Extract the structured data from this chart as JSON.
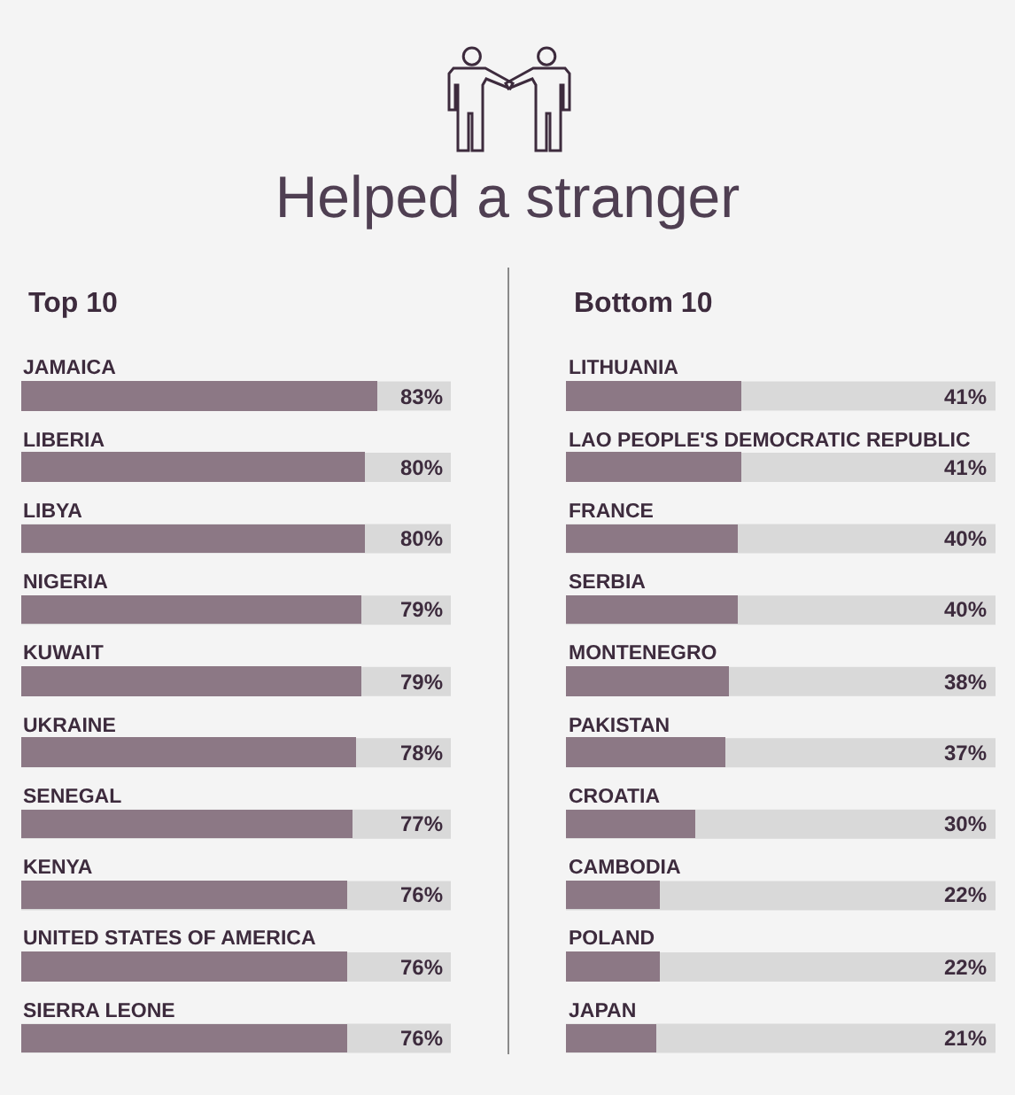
{
  "chart_data": [
    {
      "type": "bar",
      "orientation": "horizontal",
      "title": "Helped a stranger",
      "subtitle": "Top 10",
      "categories": [
        "JAMAICA",
        "LIBERIA",
        "LIBYA",
        "NIGERIA",
        "KUWAIT",
        "UKRAINE",
        "SENEGAL",
        "KENYA",
        "UNITED STATES OF AMERICA",
        "SIERRA LEONE"
      ],
      "values": [
        83,
        80,
        80,
        79,
        79,
        78,
        77,
        76,
        76,
        76
      ],
      "value_labels": [
        "83%",
        "80%",
        "80%",
        "79%",
        "79%",
        "78%",
        "77%",
        "76%",
        "76%",
        "76%"
      ],
      "color": "#8c7885",
      "xlim": [
        0,
        100
      ],
      "tick_labels": "y"
    },
    {
      "type": "bar",
      "orientation": "horizontal",
      "subtitle": "Bottom 10",
      "categories": [
        "LITHUANIA",
        "LAO PEOPLE'S DEMOCRATIC REPUBLIC",
        "FRANCE",
        "SERBIA",
        "MONTENEGRO",
        "PAKISTAN",
        "CROATIA",
        "CAMBODIA",
        "POLAND",
        "JAPAN"
      ],
      "values": [
        41,
        41,
        40,
        40,
        38,
        37,
        30,
        22,
        22,
        21
      ],
      "value_labels": [
        "41%",
        "41%",
        "40%",
        "40%",
        "38%",
        "37%",
        "30%",
        "22%",
        "22%",
        "21%"
      ],
      "color": "#8c7885",
      "xlim": [
        0,
        100
      ],
      "tick_labels": "y"
    }
  ]
}
